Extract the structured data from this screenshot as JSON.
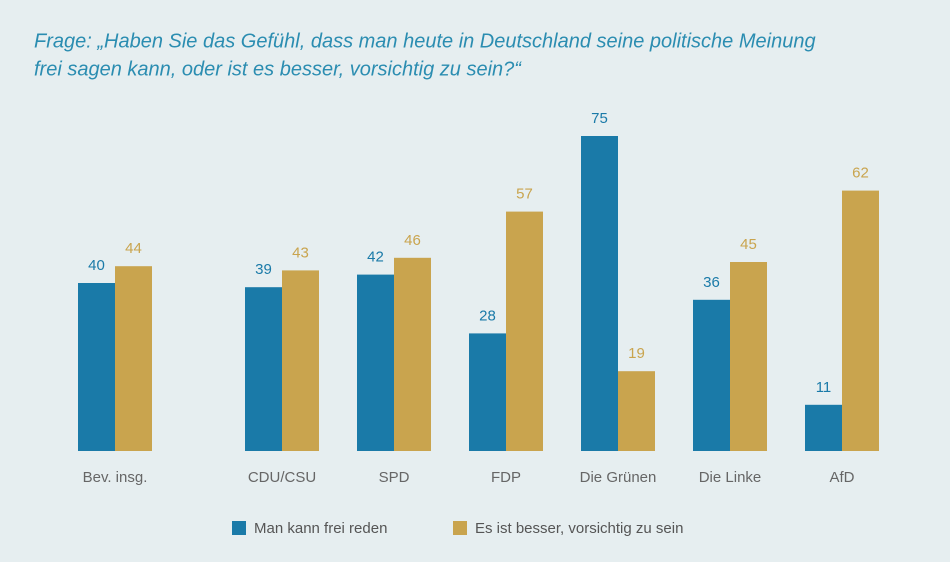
{
  "chart_data": {
    "type": "bar",
    "title": [
      "Frage: „Haben Sie das Gefühl, dass man heute in Deutschland seine politische Meinung",
      "frei sagen kann, oder ist es besser, vorsichtig zu sein?“"
    ],
    "categories": [
      "Bev. insg.",
      "CDU/CSU",
      "SPD",
      "FDP",
      "Die Grünen",
      "Die Linke",
      "AfD"
    ],
    "series": [
      {
        "name": "Man kann frei reden",
        "color": "#1a7aa8",
        "values": [
          40,
          39,
          42,
          28,
          75,
          36,
          11
        ]
      },
      {
        "name": "Es ist besser, vorsichtig zu sein",
        "color": "#c9a44e",
        "values": [
          44,
          43,
          46,
          57,
          19,
          45,
          62
        ]
      }
    ],
    "ylim": [
      0,
      75
    ]
  }
}
